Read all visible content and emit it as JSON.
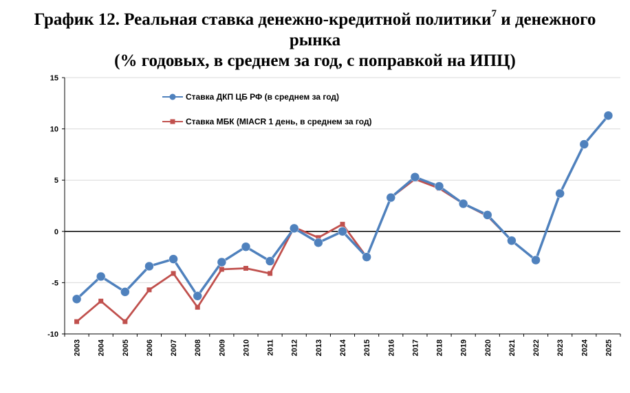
{
  "title": {
    "main": "График 12. Реальная ставка денежно-кредитной политики",
    "superscript": "7",
    "after_superscript": " и денежного",
    "line2": "рынка",
    "line3": "(% годовых, в среднем за год, с поправкой на ИПЦ)"
  },
  "chart_data": {
    "type": "line",
    "categories": [
      "2003",
      "2004",
      "2005",
      "2006",
      "2007",
      "2008",
      "2009",
      "2010",
      "2011",
      "2012",
      "2013",
      "2014",
      "2015",
      "2016",
      "2017",
      "2018",
      "2019",
      "2020",
      "2021",
      "2022",
      "2023",
      "2024",
      "2025"
    ],
    "ylim": [
      -10,
      15
    ],
    "yticks": [
      -10,
      -5,
      0,
      5,
      10,
      15
    ],
    "ytick_labels": [
      "-10",
      "-5",
      "0",
      "5",
      "10",
      "15"
    ],
    "grid": true,
    "legend_position": "top-left",
    "series": [
      {
        "name": "Ставка ДКП ЦБ РФ (в среднем за год)",
        "color": "#4f81bd",
        "marker": "circle",
        "values": [
          -6.6,
          -4.4,
          -5.9,
          -3.4,
          -2.7,
          -6.3,
          -3.0,
          -1.5,
          -2.9,
          0.3,
          -1.1,
          0.0,
          -2.5,
          3.3,
          5.3,
          4.4,
          2.7,
          1.6,
          -0.9,
          -2.8,
          3.7,
          8.5,
          11.3
        ]
      },
      {
        "name": "Ставка МБК (MIACR 1 день, в среднем за год)",
        "color": "#c0504d",
        "marker": "square",
        "values": [
          -8.8,
          -6.8,
          -8.8,
          -5.7,
          -4.1,
          -7.4,
          -3.7,
          -3.6,
          -4.1,
          0.4,
          -0.6,
          0.7,
          -2.5,
          3.3,
          5.1,
          4.2,
          2.7,
          1.5,
          -0.9,
          -2.8,
          3.7,
          8.5,
          11.3
        ]
      }
    ]
  }
}
